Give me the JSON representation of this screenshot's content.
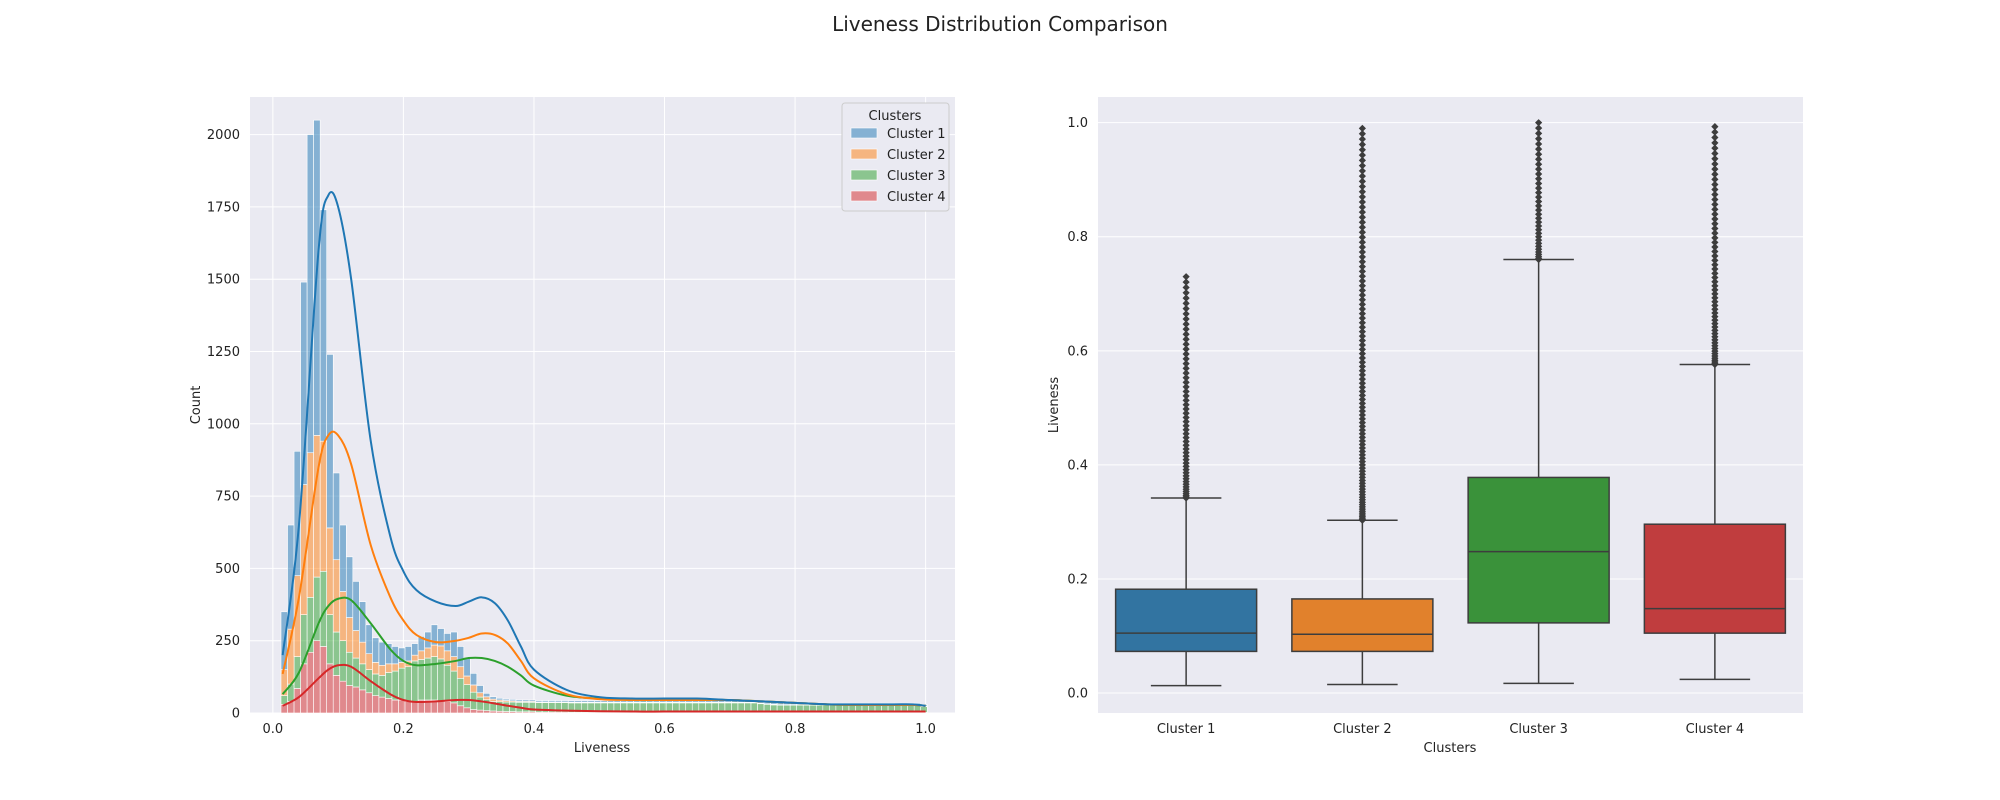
{
  "figure": {
    "title": "Liveness Distribution Comparison"
  },
  "colors": {
    "background": "#eaeaf2",
    "grid": "#ffffff",
    "cluster_1": "#1f77b4",
    "cluster_2": "#ff7f0e",
    "cluster_3": "#2ca02c",
    "cluster_4": "#d62728"
  },
  "chart_data": [
    {
      "type": "histogram_stacked_with_kde",
      "title": "",
      "xlabel": "Liveness",
      "ylabel": "Count",
      "xlim": [
        -0.035,
        1.045
      ],
      "ylim": [
        0,
        2130
      ],
      "xticks": [
        0.0,
        0.2,
        0.4,
        0.6,
        0.8,
        1.0
      ],
      "xtick_labels": [
        "0.0",
        "0.2",
        "0.4",
        "0.6",
        "0.8",
        "1.0"
      ],
      "yticks": [
        0,
        250,
        500,
        750,
        1000,
        1250,
        1500,
        1750,
        2000
      ],
      "ytick_labels": [
        "0",
        "250",
        "500",
        "750",
        "1000",
        "1250",
        "1500",
        "1750",
        "2000"
      ],
      "grid": true,
      "legend": {
        "title": "Clusters",
        "position": "top-right",
        "entries": [
          "Cluster 1",
          "Cluster 2",
          "Cluster 3",
          "Cluster 4"
        ]
      },
      "bin_start": 0.0125,
      "bin_width": 0.01,
      "stack_order_bottom_to_top": [
        "Cluster 4",
        "Cluster 3",
        "Cluster 2",
        "Cluster 1"
      ],
      "kde_x": [
        0.015,
        0.04,
        0.07,
        0.085,
        0.1,
        0.12,
        0.15,
        0.18,
        0.2,
        0.22,
        0.25,
        0.28,
        0.3,
        0.32,
        0.34,
        0.36,
        0.38,
        0.4,
        0.45,
        0.5,
        0.55,
        0.6,
        0.65,
        0.7,
        0.75,
        0.8,
        0.85,
        0.9,
        0.95,
        0.98,
        1.0
      ],
      "series": [
        {
          "name": "Cluster 4",
          "color": "#d62728",
          "bin_values": [
            30,
            40,
            85,
            170,
            210,
            250,
            230,
            170,
            130,
            110,
            95,
            90,
            80,
            70,
            60,
            55,
            50,
            45,
            45,
            40,
            40,
            45,
            45,
            45,
            42,
            40,
            35,
            25,
            18,
            12,
            10,
            8,
            7,
            6,
            5,
            5,
            4,
            4,
            4,
            3,
            3,
            3,
            3,
            3,
            2,
            2,
            2,
            2,
            2,
            2,
            2,
            2,
            2,
            2,
            2,
            2,
            2,
            2,
            2,
            2,
            2,
            2,
            2,
            2,
            2,
            2,
            2,
            2,
            2,
            2,
            2,
            2,
            2,
            2,
            2,
            2,
            2,
            2,
            2,
            2,
            2,
            2,
            2,
            2,
            2,
            2,
            2,
            2,
            2,
            2,
            2,
            2,
            2,
            2,
            2,
            2,
            2,
            2,
            2
          ],
          "kde_cum": [
            25,
            55,
            120,
            150,
            165,
            160,
            110,
            65,
            45,
            38,
            40,
            45,
            45,
            40,
            33,
            25,
            18,
            12,
            8,
            6,
            5,
            5,
            5,
            5,
            5,
            5,
            5,
            5,
            5,
            5,
            5
          ]
        },
        {
          "name": "Cluster 3",
          "color": "#2ca02c",
          "bin_values": [
            30,
            60,
            110,
            170,
            190,
            220,
            260,
            170,
            150,
            140,
            115,
            100,
            90,
            80,
            75,
            75,
            90,
            100,
            110,
            120,
            140,
            140,
            145,
            150,
            145,
            125,
            110,
            95,
            80,
            60,
            45,
            38,
            33,
            33,
            33,
            33,
            33,
            33,
            33,
            33,
            33,
            33,
            33,
            33,
            33,
            33,
            33,
            33,
            33,
            33,
            33,
            33,
            33,
            33,
            33,
            33,
            33,
            33,
            33,
            33,
            33,
            33,
            33,
            33,
            33,
            33,
            33,
            33,
            33,
            33,
            33,
            33,
            33,
            30,
            28,
            26,
            25,
            25,
            25,
            25,
            25,
            25,
            25,
            25,
            25,
            25,
            25,
            25,
            25,
            25,
            25,
            25,
            25,
            25,
            25,
            25,
            25,
            25,
            20
          ],
          "kde_cum": [
            65,
            140,
            310,
            370,
            395,
            390,
            310,
            220,
            180,
            165,
            170,
            180,
            190,
            190,
            180,
            160,
            130,
            95,
            60,
            50,
            45,
            45,
            45,
            45,
            40,
            35,
            30,
            28,
            28,
            28,
            25
          ]
        },
        {
          "name": "Cluster 2",
          "color": "#ff7f0e",
          "bin_values": [
            90,
            190,
            280,
            450,
            500,
            490,
            450,
            300,
            250,
            170,
            120,
            95,
            75,
            55,
            40,
            35,
            30,
            25,
            20,
            20,
            20,
            30,
            35,
            40,
            45,
            50,
            50,
            40,
            30,
            25,
            15,
            10,
            8,
            6,
            5,
            4,
            3,
            3,
            3,
            2,
            2,
            2,
            2,
            2,
            2,
            2,
            2,
            2,
            2,
            2,
            2,
            2,
            2,
            2,
            2,
            2,
            2,
            2,
            2,
            2,
            2,
            2,
            2,
            2,
            2,
            2,
            2,
            2,
            2,
            2,
            2,
            2,
            2,
            2,
            2,
            2,
            2,
            2,
            2,
            2,
            2,
            2,
            2,
            2,
            2,
            2,
            2,
            2,
            2,
            2,
            2,
            2,
            2,
            2,
            2,
            2,
            2,
            2,
            2
          ],
          "kde_cum": [
            135,
            400,
            850,
            960,
            960,
            860,
            580,
            400,
            320,
            270,
            245,
            250,
            260,
            275,
            270,
            240,
            180,
            120,
            65,
            48,
            45,
            45,
            45,
            45,
            40,
            35,
            30,
            28,
            28,
            28,
            25
          ]
        },
        {
          "name": "Cluster 1",
          "color": "#1f77b4",
          "bin_values": [
            200,
            360,
            430,
            700,
            1100,
            1090,
            800,
            600,
            300,
            230,
            210,
            170,
            140,
            100,
            85,
            80,
            70,
            60,
            50,
            50,
            40,
            50,
            55,
            70,
            60,
            60,
            85,
            70,
            60,
            40,
            25,
            12,
            8,
            6,
            5,
            5,
            5,
            5,
            5,
            5,
            5,
            5,
            5,
            5,
            5,
            5,
            5,
            5,
            5,
            5,
            5,
            5,
            5,
            5,
            5,
            5,
            5,
            5,
            5,
            5,
            5,
            5,
            5,
            5,
            5,
            5,
            5,
            5,
            5,
            5,
            5,
            5,
            5,
            5,
            5,
            5,
            5,
            5,
            5,
            5,
            5,
            5,
            5,
            5,
            5,
            5,
            5,
            5,
            5,
            5,
            5,
            5,
            5,
            5,
            5,
            5,
            5,
            5,
            5
          ],
          "kde_cum": [
            200,
            650,
            1600,
            1790,
            1750,
            1500,
            940,
            610,
            490,
            425,
            385,
            370,
            385,
            400,
            380,
            320,
            230,
            150,
            80,
            55,
            50,
            50,
            50,
            45,
            40,
            35,
            30,
            30,
            30,
            30,
            25
          ]
        }
      ]
    },
    {
      "type": "box",
      "title": "",
      "xlabel": "Clusters",
      "ylabel": "Liveness",
      "ylim": [
        -0.035,
        1.045
      ],
      "yticks": [
        0.0,
        0.2,
        0.4,
        0.6,
        0.8,
        1.0
      ],
      "ytick_labels": [
        "0.0",
        "0.2",
        "0.4",
        "0.6",
        "0.8",
        "1.0"
      ],
      "grid": true,
      "categories": [
        "Cluster 1",
        "Cluster 2",
        "Cluster 3",
        "Cluster 4"
      ],
      "boxes": [
        {
          "name": "Cluster 1",
          "color": "#3274a1",
          "whisker_low": 0.013,
          "q1": 0.073,
          "median": 0.105,
          "q3": 0.182,
          "whisker_high": 0.342,
          "outliers_range": [
            0.342,
            0.73
          ]
        },
        {
          "name": "Cluster 2",
          "color": "#e1812c",
          "whisker_low": 0.015,
          "q1": 0.073,
          "median": 0.103,
          "q3": 0.165,
          "whisker_high": 0.303,
          "outliers_range": [
            0.303,
            0.99
          ]
        },
        {
          "name": "Cluster 3",
          "color": "#3a923a",
          "whisker_low": 0.017,
          "q1": 0.123,
          "median": 0.248,
          "q3": 0.378,
          "whisker_high": 0.76,
          "outliers_range": [
            0.76,
            1.0
          ]
        },
        {
          "name": "Cluster 4",
          "color": "#c03d3e",
          "whisker_low": 0.024,
          "q1": 0.105,
          "median": 0.148,
          "q3": 0.296,
          "whisker_high": 0.576,
          "outliers_range": [
            0.576,
            0.993
          ]
        }
      ]
    }
  ]
}
